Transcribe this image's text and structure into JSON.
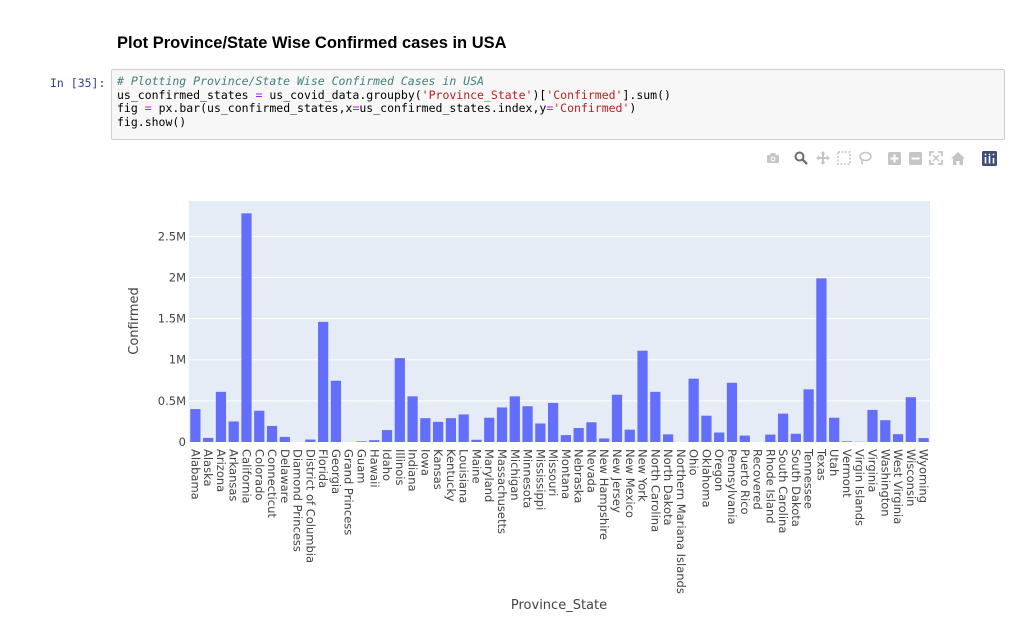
{
  "heading": "Plot Province/State Wise Confirmed cases in USA",
  "cell": {
    "prompt": "In [35]:",
    "lines": [
      [
        {
          "t": "# Plotting Province/State Wise Confirmed Cases in USA",
          "c": "cm"
        }
      ],
      [
        {
          "t": "us_confirmed_states ",
          "c": ""
        },
        {
          "t": "=",
          "c": "op"
        },
        {
          "t": " us_covid_data.groupby(",
          "c": ""
        },
        {
          "t": "'Province_State'",
          "c": "str"
        },
        {
          "t": ")[",
          "c": ""
        },
        {
          "t": "'Confirmed'",
          "c": "str"
        },
        {
          "t": "].sum()",
          "c": ""
        }
      ],
      [
        {
          "t": "fig ",
          "c": ""
        },
        {
          "t": "=",
          "c": "op"
        },
        {
          "t": " px.bar(us_confirmed_states,x",
          "c": ""
        },
        {
          "t": "=",
          "c": "op"
        },
        {
          "t": "us_confirmed_states.index,y",
          "c": ""
        },
        {
          "t": "=",
          "c": "op"
        },
        {
          "t": "'Confirmed'",
          "c": "str"
        },
        {
          "t": ")",
          "c": ""
        }
      ],
      [
        {
          "t": "fig.show()",
          "c": ""
        }
      ]
    ]
  },
  "modebar": {
    "icons": [
      "camera-icon",
      "zoom-icon",
      "pan-icon",
      "box-select-icon",
      "lasso-select-icon",
      "zoom-in-icon",
      "zoom-out-icon",
      "autoscale-icon",
      "reset-axes-icon",
      "plotly-logo-icon"
    ]
  },
  "chart_data": {
    "type": "bar",
    "xlabel": "Province_State",
    "ylabel": "Confirmed",
    "ylim": [
      0,
      2930000
    ],
    "yticks": [
      0,
      500000,
      1000000,
      1500000,
      2000000,
      2500000
    ],
    "ytick_labels": [
      "0",
      "0.5M",
      "1M",
      "1.5M",
      "2M",
      "2.5M"
    ],
    "grid": true,
    "bar_color": "#636efa",
    "plot_bg": "#e5ecf6",
    "categories": [
      "Alabama",
      "Alaska",
      "Arizona",
      "Arkansas",
      "California",
      "Colorado",
      "Connecticut",
      "Delaware",
      "Diamond Princess",
      "District of Columbia",
      "Florida",
      "Georgia",
      "Grand Princess",
      "Guam",
      "Hawaii",
      "Idaho",
      "Illinois",
      "Indiana",
      "Iowa",
      "Kansas",
      "Kentucky",
      "Louisiana",
      "Maine",
      "Maryland",
      "Massachusetts",
      "Michigan",
      "Minnesota",
      "Mississippi",
      "Missouri",
      "Montana",
      "Nebraska",
      "Nevada",
      "New Hampshire",
      "New Jersey",
      "New Mexico",
      "New York",
      "North Carolina",
      "North Dakota",
      "Northern Mariana Islands",
      "Ohio",
      "Oklahoma",
      "Oregon",
      "Pennsylvania",
      "Puerto Rico",
      "Recovered",
      "Rhode Island",
      "South Carolina",
      "South Dakota",
      "Tennessee",
      "Texas",
      "Utah",
      "Vermont",
      "Virgin Islands",
      "Virginia",
      "Washington",
      "West Virginia",
      "Wisconsin",
      "Wyoming"
    ],
    "values": [
      400000,
      50000,
      610000,
      250000,
      2780000,
      380000,
      195000,
      62000,
      0,
      30000,
      1460000,
      745000,
      0,
      8000,
      22000,
      145000,
      1020000,
      555000,
      290000,
      245000,
      290000,
      335000,
      27000,
      295000,
      420000,
      555000,
      435000,
      225000,
      475000,
      84000,
      170000,
      240000,
      43000,
      575000,
      150000,
      1110000,
      610000,
      93000,
      0,
      770000,
      320000,
      115000,
      720000,
      78000,
      0,
      90000,
      345000,
      100000,
      640000,
      1990000,
      295000,
      8000,
      2000,
      390000,
      265000,
      95000,
      545000,
      48000
    ]
  }
}
